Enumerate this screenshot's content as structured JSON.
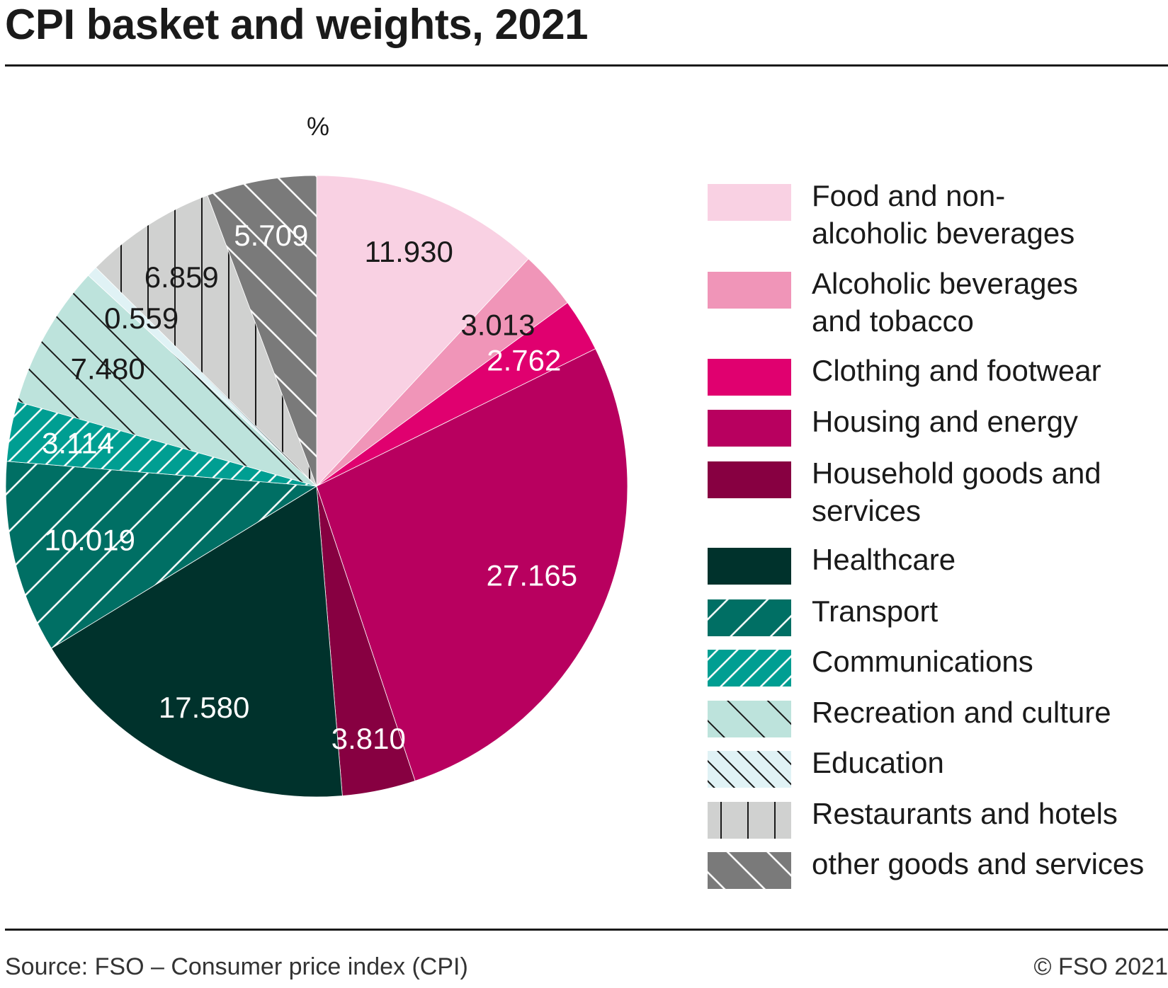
{
  "title": "CPI basket and weights, 2021",
  "footer": {
    "source": "Source: FSO – Consumer price index (CPI)",
    "copyright": "© FSO 2021"
  },
  "chart_data": {
    "type": "pie",
    "title": "CPI basket and weights, 2021",
    "unit_label": "%",
    "legend_position": "right",
    "start": "top, clockwise",
    "slices": [
      {
        "label": "Food and non-alcoholic beverages",
        "value": 11.93,
        "value_label": "11.930",
        "color": "#f9d1e3",
        "pattern": "none",
        "label_color": "#1a1a1a"
      },
      {
        "label": "Alcoholic beverages and tobacco",
        "value": 3.013,
        "value_label": "3.013",
        "color": "#f095b8",
        "pattern": "none",
        "label_color": "#1a1a1a"
      },
      {
        "label": "Clothing and footwear",
        "value": 2.762,
        "value_label": "2.762",
        "color": "#e0006f",
        "pattern": "none",
        "label_color": "#ffffff"
      },
      {
        "label": "Housing and energy",
        "value": 27.165,
        "value_label": "27.165",
        "color": "#b8005f",
        "pattern": "none",
        "label_color": "#ffffff"
      },
      {
        "label": "Household goods and services",
        "value": 3.81,
        "value_label": "3.810",
        "color": "#870041",
        "pattern": "none",
        "label_color": "#ffffff"
      },
      {
        "label": "Healthcare",
        "value": 17.58,
        "value_label": "17.580",
        "color": "#00322c",
        "pattern": "none",
        "label_color": "#ffffff"
      },
      {
        "label": "Transport",
        "value": 10.019,
        "value_label": "10.019",
        "color": "#006f64",
        "pattern": "back-diagonal-white-wide",
        "label_color": "#ffffff"
      },
      {
        "label": "Communications",
        "value": 3.114,
        "value_label": "3.114",
        "color": "#009e92",
        "pattern": "back-diagonal-white-dense",
        "label_color": "#ffffff"
      },
      {
        "label": "Recreation and culture",
        "value": 7.48,
        "value_label": "7.480",
        "color": "#bde3dc",
        "pattern": "diagonal-black-wide",
        "label_color": "#1a1a1a"
      },
      {
        "label": "Education",
        "value": 0.559,
        "value_label": "0.559",
        "color": "#e0f2f5",
        "pattern": "diagonal-black-dense",
        "label_color": "#1a1a1a"
      },
      {
        "label": "Restaurants and hotels",
        "value": 6.859,
        "value_label": "6.859",
        "color": "#d0d1d0",
        "pattern": "vertical-black",
        "label_color": "#1a1a1a"
      },
      {
        "label": "other goods and services",
        "value": 5.709,
        "value_label": "5.709",
        "color": "#7a7a7a",
        "pattern": "diagonal-white-wide",
        "label_color": "#ffffff"
      }
    ]
  }
}
